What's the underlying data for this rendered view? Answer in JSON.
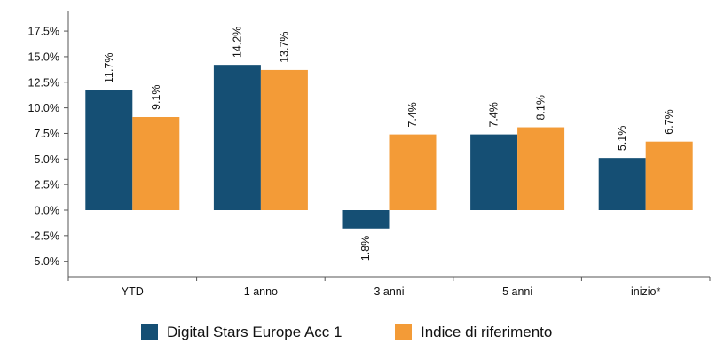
{
  "chart_data": {
    "type": "bar",
    "categories": [
      "YTD",
      "1 anno",
      "3 anni",
      "5 anni",
      "inizio*"
    ],
    "series": [
      {
        "name": "Digital Stars Europe Acc 1",
        "values": [
          11.7,
          14.2,
          -1.8,
          7.4,
          5.1
        ],
        "labels": [
          "11.7%",
          "14.2%",
          "-1.8%",
          "7.4%",
          "5.1%"
        ],
        "color": "#154f74"
      },
      {
        "name": "Indice di riferimento",
        "values": [
          9.1,
          13.7,
          7.4,
          8.1,
          6.7
        ],
        "labels": [
          "9.1%",
          "13.7%",
          "7.4%",
          "8.1%",
          "6.7%"
        ],
        "color": "#f39b37"
      }
    ],
    "ylim": [
      -6.5,
      19.5
    ],
    "y_ticks": [
      {
        "value": 17.5,
        "label": "17.5%"
      },
      {
        "value": 15.0,
        "label": "15.0%"
      },
      {
        "value": 12.5,
        "label": "12.5%"
      },
      {
        "value": 10.0,
        "label": "10.0%"
      },
      {
        "value": 7.5,
        "label": "7.5%"
      },
      {
        "value": 5.0,
        "label": "5.0%"
      },
      {
        "value": 2.5,
        "label": "2.5%"
      },
      {
        "value": 0.0,
        "label": "0.0%"
      },
      {
        "value": -2.5,
        "label": "-2.5%"
      },
      {
        "value": -5.0,
        "label": "-5.0%"
      }
    ],
    "grid": false,
    "legend": "bottom",
    "data_labels": "rotated",
    "axis_color": "#555555"
  }
}
